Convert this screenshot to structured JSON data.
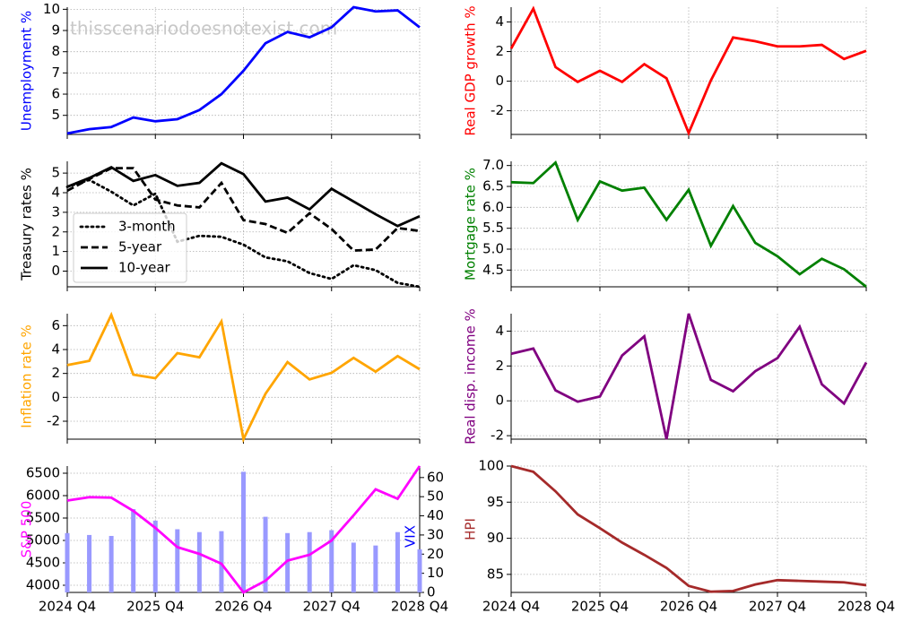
{
  "chart_data": [
    {
      "type": "line",
      "ylabel": "Unemployment %",
      "ylabel_color": "#0000ff",
      "watermark": "thisscenariodoesnotexist.com",
      "series": [
        {
          "color": "#0000ff",
          "values": [
            4.15,
            4.35,
            4.45,
            4.9,
            4.72,
            4.82,
            5.25,
            6.0,
            7.1,
            8.4,
            8.93,
            8.68,
            9.15,
            10.1,
            9.9,
            9.95,
            9.15
          ]
        }
      ],
      "ylim": [
        4.1,
        10.1
      ],
      "yticks": [
        5,
        6,
        7,
        8,
        9,
        10
      ],
      "grid": true
    },
    {
      "type": "line",
      "ylabel": "Real GDP growth %",
      "ylabel_color": "#ff0000",
      "series": [
        {
          "color": "#ff0000",
          "values": [
            2.2,
            4.9,
            0.95,
            -0.05,
            0.7,
            -0.05,
            1.15,
            0.2,
            -3.5,
            0.05,
            2.95,
            2.7,
            2.35,
            2.35,
            2.45,
            1.5,
            2.05
          ]
        }
      ],
      "ylim": [
        -3.6,
        5.0
      ],
      "yticks": [
        -2,
        0,
        2,
        4
      ],
      "grid": true
    },
    {
      "type": "line",
      "ylabel": "Treasury rates %",
      "ylabel_color": "#000000",
      "legend": "lower left",
      "series": [
        {
          "name": "3-month",
          "color": "#000000",
          "dash": "dotted",
          "values": [
            4.3,
            4.65,
            4.05,
            3.35,
            3.95,
            1.5,
            1.8,
            1.75,
            1.35,
            0.7,
            0.5,
            -0.1,
            -0.4,
            0.3,
            0.05,
            -0.6,
            -0.8
          ]
        },
        {
          "name": "5-year",
          "color": "#000000",
          "dash": "dashed",
          "values": [
            4.1,
            4.7,
            5.25,
            5.25,
            3.65,
            3.35,
            3.25,
            4.5,
            2.6,
            2.4,
            1.95,
            2.95,
            2.15,
            1.05,
            1.1,
            2.2,
            2.05
          ]
        },
        {
          "name": "10-year",
          "color": "#000000",
          "dash": "solid",
          "values": [
            4.3,
            4.75,
            5.3,
            4.6,
            4.9,
            4.35,
            4.5,
            5.5,
            4.95,
            3.55,
            3.75,
            3.15,
            4.2,
            3.55,
            2.9,
            2.3,
            2.8
          ]
        }
      ],
      "ylim": [
        -0.8,
        5.6
      ],
      "yticks": [
        0,
        1,
        2,
        3,
        4,
        5
      ],
      "grid": true
    },
    {
      "type": "line",
      "ylabel": "Mortgage rate %",
      "ylabel_color": "#008000",
      "series": [
        {
          "color": "#008000",
          "values": [
            6.6,
            6.58,
            7.07,
            5.7,
            6.62,
            6.4,
            6.47,
            5.7,
            6.42,
            5.08,
            6.03,
            5.15,
            4.83,
            4.4,
            4.77,
            4.52,
            4.1
          ]
        }
      ],
      "ylim": [
        4.1,
        7.1
      ],
      "yticks": [
        {
          "value": 4.5,
          "label": "4.5"
        },
        {
          "value": 5,
          "label": "5.0"
        },
        {
          "value": 5.5,
          "label": "5.5"
        },
        {
          "value": 6,
          "label": "6.0"
        },
        {
          "value": 6.5,
          "label": "6.5"
        },
        {
          "value": 7,
          "label": "7.0"
        }
      ],
      "grid": true
    },
    {
      "type": "line",
      "ylabel": "Inflation rate %",
      "ylabel_color": "#ffa500",
      "series": [
        {
          "color": "#ffa500",
          "values": [
            2.7,
            3.05,
            6.9,
            1.9,
            1.6,
            3.7,
            3.35,
            6.35,
            -3.5,
            0.3,
            2.95,
            1.5,
            2.05,
            3.3,
            2.15,
            3.45,
            2.35
          ]
        }
      ],
      "ylim": [
        -3.5,
        7.0
      ],
      "yticks": [
        -2,
        0,
        2,
        4,
        6
      ],
      "grid": true
    },
    {
      "type": "line",
      "ylabel": "Real disp. income %",
      "ylabel_color": "#800080",
      "series": [
        {
          "color": "#800080",
          "values": [
            2.7,
            3.0,
            0.6,
            -0.05,
            0.25,
            2.6,
            3.7,
            -2.2,
            5.0,
            1.2,
            0.55,
            1.7,
            2.45,
            4.25,
            0.95,
            -0.15,
            2.2
          ]
        }
      ],
      "ylim": [
        -2.2,
        5.0
      ],
      "yticks": [
        -2,
        0,
        2,
        4
      ],
      "grid": true
    },
    {
      "type": "line",
      "ylabel": "S&P 500",
      "ylabel_color": "#ff00ff",
      "y2label": "VIX",
      "y2label_color": "#0000ff",
      "categories": [
        "2024 Q4",
        null,
        null,
        null,
        "2025 Q4",
        null,
        null,
        null,
        "2026 Q4",
        null,
        null,
        null,
        "2027 Q4",
        null,
        null,
        null,
        "2028 Q4"
      ],
      "series": [
        {
          "color": "#ff00ff",
          "values": [
            5890,
            5965,
            5955,
            5660,
            5280,
            4850,
            4700,
            4480,
            3840,
            4100,
            4550,
            4680,
            5000,
            5560,
            6140,
            5930,
            6660
          ]
        },
        {
          "color": "#9999ff",
          "type": "bar",
          "axis": "y2",
          "values": [
            31,
            30,
            29.5,
            43.5,
            37.5,
            33,
            31.5,
            32,
            63,
            39.5,
            31,
            31.5,
            32.5,
            26,
            24.5,
            31.5,
            22.5
          ]
        }
      ],
      "ylim": [
        3840,
        6660
      ],
      "yticks": [
        4000,
        4500,
        5000,
        5500,
        6000,
        6500
      ],
      "y2lim": [
        0,
        66
      ],
      "y2ticks": [
        0,
        10,
        20,
        30,
        40,
        50,
        60
      ],
      "grid": true
    },
    {
      "type": "line",
      "ylabel": "HPI",
      "ylabel_color": "#a52a2a",
      "categories": [
        "2024 Q4",
        null,
        null,
        null,
        "2025 Q4",
        null,
        null,
        null,
        "2026 Q4",
        null,
        null,
        null,
        "2027 Q4",
        null,
        null,
        null,
        "2028 Q4"
      ],
      "series": [
        {
          "color": "#a52a2a",
          "values": [
            100,
            99.2,
            96.5,
            93.3,
            91.4,
            89.4,
            87.7,
            85.9,
            83.4,
            82.6,
            82.7,
            83.6,
            84.2,
            84.1,
            84.0,
            83.9,
            83.5
          ]
        }
      ],
      "ylim": [
        82.5,
        100
      ],
      "yticks": [
        85,
        90,
        95,
        100
      ],
      "grid": true
    }
  ]
}
